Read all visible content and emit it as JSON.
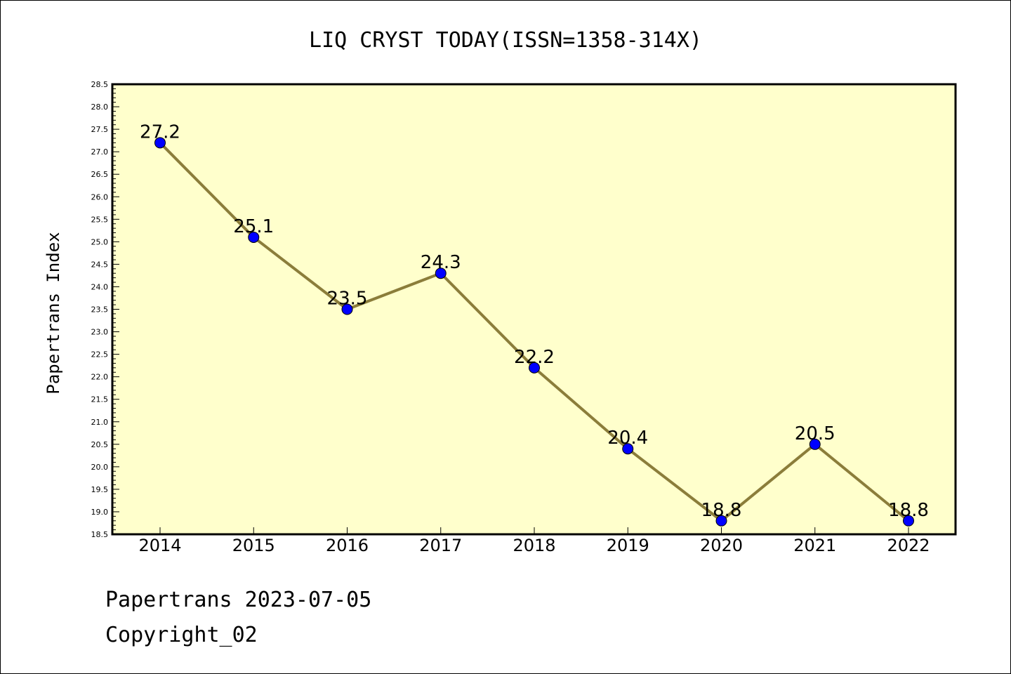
{
  "chart_data": {
    "type": "line",
    "title": "LIQ CRYST TODAY(ISSN=1358-314X)",
    "ylabel": "Papertrans Index",
    "xlabel": "",
    "categories": [
      "2014",
      "2015",
      "2016",
      "2017",
      "2018",
      "2019",
      "2020",
      "2021",
      "2022"
    ],
    "values": [
      27.2,
      25.1,
      23.5,
      24.3,
      22.2,
      20.4,
      18.8,
      20.5,
      18.8
    ],
    "data_labels": [
      "27.2",
      "25.1",
      "23.5",
      "24.3",
      "22.2",
      "20.4",
      "18.8",
      "20.5",
      "18.8"
    ],
    "ylim": [
      18.5,
      28.5
    ],
    "ytick_labels": [
      "18.5",
      "19.0",
      "19.5",
      "20.0",
      "20.5",
      "21.0",
      "21.5",
      "22.0",
      "22.5",
      "23.0",
      "23.5",
      "24.0",
      "24.5",
      "25.0",
      "25.5",
      "26.0",
      "26.5",
      "27.0",
      "27.5",
      "28.0",
      "28.5"
    ],
    "grid": false,
    "legend": "none",
    "colors": {
      "plot_background": "#ffffcc",
      "line": "#8b7d3a",
      "marker": "#0000ff"
    }
  },
  "footer": {
    "line1": "Papertrans 2023-07-05",
    "line2": "Copyright_02"
  }
}
